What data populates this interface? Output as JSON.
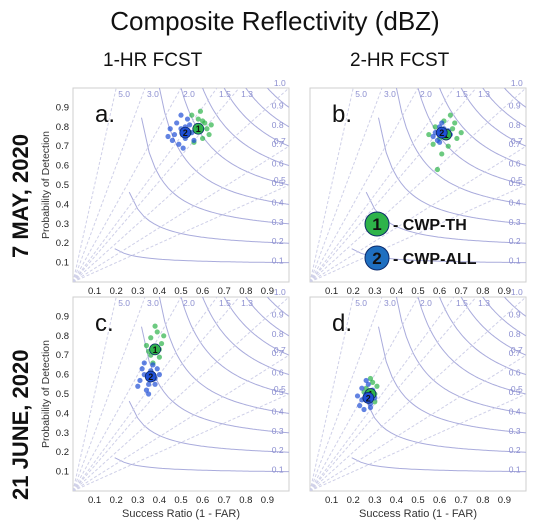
{
  "title": "Composite Reflectivity (dBZ)",
  "columns": [
    "1-HR FCST",
    "2-HR FCST"
  ],
  "rows": [
    "7 MAY, 2020",
    "21 JUNE, 2020"
  ],
  "legend": [
    {
      "number": "1",
      "label": "- CWP-TH",
      "color": "#2eb34a"
    },
    {
      "number": "2",
      "label": "- CWP-ALL",
      "color": "#1f6fc0"
    }
  ],
  "chart_data": [
    {
      "type": "scatter",
      "panel_label": "a.",
      "ylabel": "Probability of Detection",
      "xlabel": "",
      "xlim": [
        0,
        1
      ],
      "ylim": [
        0,
        1
      ],
      "xticks": [
        "0.1",
        "0.2",
        "0.3",
        "0.4",
        "0.5",
        "0.6",
        "0.7",
        "0.8",
        "0.9"
      ],
      "yticks": [
        "0.1",
        "0.2",
        "0.3",
        "0.4",
        "0.5",
        "0.6",
        "0.7",
        "0.8",
        "0.9"
      ],
      "csi_labels": [
        "0.1",
        "0.2",
        "0.3",
        "0.4",
        "0.5",
        "0.6",
        "0.7",
        "0.8",
        "0.9"
      ],
      "bias_labels": [
        "0.5",
        "0.7",
        "1.0",
        "1.3",
        "1.5",
        "2.0",
        "3.0",
        "5.0"
      ],
      "series": [
        {
          "name": "CWP-TH",
          "color": "#2eb34a",
          "mean": [
            0.58,
            0.79
          ],
          "points": [
            [
              0.55,
              0.86
            ],
            [
              0.58,
              0.84
            ],
            [
              0.61,
              0.82
            ],
            [
              0.63,
              0.76
            ],
            [
              0.6,
              0.74
            ],
            [
              0.57,
              0.8
            ],
            [
              0.62,
              0.79
            ],
            [
              0.59,
              0.88
            ],
            [
              0.54,
              0.77
            ],
            [
              0.64,
              0.81
            ],
            [
              0.56,
              0.72
            ],
            [
              0.6,
              0.83
            ]
          ]
        },
        {
          "name": "CWP-ALL",
          "color": "#1f4fd6",
          "mean": [
            0.52,
            0.77
          ],
          "points": [
            [
              0.47,
              0.76
            ],
            [
              0.5,
              0.79
            ],
            [
              0.52,
              0.74
            ],
            [
              0.54,
              0.81
            ],
            [
              0.49,
              0.71
            ],
            [
              0.45,
              0.79
            ],
            [
              0.53,
              0.84
            ],
            [
              0.48,
              0.82
            ],
            [
              0.55,
              0.77
            ],
            [
              0.51,
              0.69
            ],
            [
              0.46,
              0.73
            ],
            [
              0.5,
              0.86
            ],
            [
              0.56,
              0.73
            ],
            [
              0.44,
              0.75
            ],
            [
              0.52,
              0.8
            ]
          ]
        }
      ]
    },
    {
      "type": "scatter",
      "panel_label": "b.",
      "ylabel": "",
      "xlabel": "",
      "xlim": [
        0,
        1
      ],
      "ylim": [
        0,
        1
      ],
      "xticks": [
        "0.1",
        "0.2",
        "0.3",
        "0.4",
        "0.5",
        "0.6",
        "0.7",
        "0.8",
        "0.9"
      ],
      "yticks": [],
      "csi_labels": [
        "0.1",
        "0.2",
        "0.3",
        "0.4",
        "0.5",
        "0.6",
        "0.7",
        "0.8",
        "0.9"
      ],
      "bias_labels": [
        "0.5",
        "0.7",
        "1.0",
        "1.3",
        "1.5",
        "2.0",
        "3.0",
        "5.0"
      ],
      "series": [
        {
          "name": "CWP-TH",
          "color": "#2eb34a",
          "mean": [
            0.63,
            0.76
          ],
          "points": [
            [
              0.58,
              0.8
            ],
            [
              0.62,
              0.83
            ],
            [
              0.66,
              0.79
            ],
            [
              0.68,
              0.74
            ],
            [
              0.64,
              0.7
            ],
            [
              0.6,
              0.74
            ],
            [
              0.7,
              0.77
            ],
            [
              0.57,
              0.71
            ],
            [
              0.65,
              0.86
            ],
            [
              0.61,
              0.66
            ],
            [
              0.55,
              0.76
            ],
            [
              0.67,
              0.82
            ],
            [
              0.59,
              0.58
            ]
          ]
        },
        {
          "name": "CWP-ALL",
          "color": "#1f4fd6",
          "mean": [
            0.61,
            0.77
          ],
          "points": [
            [
              0.58,
              0.77
            ],
            [
              0.6,
              0.8
            ],
            [
              0.63,
              0.75
            ],
            [
              0.62,
              0.79
            ],
            [
              0.59,
              0.73
            ],
            [
              0.64,
              0.78
            ],
            [
              0.61,
              0.82
            ],
            [
              0.57,
              0.75
            ],
            [
              0.65,
              0.76
            ],
            [
              0.6,
              0.72
            ]
          ]
        }
      ]
    },
    {
      "type": "scatter",
      "panel_label": "c.",
      "ylabel": "Probability of Detection",
      "xlabel": "Success Ratio (1 - FAR)",
      "xlim": [
        0,
        1
      ],
      "ylim": [
        0,
        1
      ],
      "xticks": [
        "0.1",
        "0.2",
        "0.3",
        "0.4",
        "0.5",
        "0.6",
        "0.7",
        "0.8",
        "0.9"
      ],
      "yticks": [
        "0.1",
        "0.2",
        "0.3",
        "0.4",
        "0.5",
        "0.6",
        "0.7",
        "0.8",
        "0.9"
      ],
      "csi_labels": [
        "0.1",
        "0.2",
        "0.3",
        "0.4",
        "0.5",
        "0.6",
        "0.7",
        "0.8",
        "0.9"
      ],
      "bias_labels": [
        "0.5",
        "0.7",
        "1.0",
        "1.3",
        "1.5",
        "2.0",
        "3.0",
        "5.0"
      ],
      "series": [
        {
          "name": "CWP-TH",
          "color": "#2eb34a",
          "mean": [
            0.38,
            0.73
          ],
          "points": [
            [
              0.36,
              0.79
            ],
            [
              0.39,
              0.82
            ],
            [
              0.41,
              0.76
            ],
            [
              0.35,
              0.72
            ],
            [
              0.4,
              0.69
            ],
            [
              0.37,
              0.66
            ],
            [
              0.42,
              0.8
            ],
            [
              0.34,
              0.75
            ],
            [
              0.38,
              0.85
            ],
            [
              0.4,
              0.73
            ],
            [
              0.36,
              0.7
            ]
          ]
        },
        {
          "name": "CWP-ALL",
          "color": "#1f4fd6",
          "mean": [
            0.36,
            0.59
          ],
          "points": [
            [
              0.33,
              0.6
            ],
            [
              0.36,
              0.62
            ],
            [
              0.38,
              0.58
            ],
            [
              0.35,
              0.55
            ],
            [
              0.31,
              0.57
            ],
            [
              0.39,
              0.63
            ],
            [
              0.34,
              0.52
            ],
            [
              0.37,
              0.65
            ],
            [
              0.32,
              0.63
            ],
            [
              0.4,
              0.6
            ],
            [
              0.35,
              0.5
            ],
            [
              0.3,
              0.54
            ],
            [
              0.38,
              0.55
            ],
            [
              0.33,
              0.66
            ]
          ]
        }
      ]
    },
    {
      "type": "scatter",
      "panel_label": "d.",
      "ylabel": "",
      "xlabel": "Success Ratio (1 - FAR)",
      "xlim": [
        0,
        1
      ],
      "ylim": [
        0,
        1
      ],
      "xticks": [
        "0.1",
        "0.2",
        "0.3",
        "0.4",
        "0.5",
        "0.6",
        "0.7",
        "0.8",
        "0.9"
      ],
      "yticks": [],
      "csi_labels": [
        "0.1",
        "0.2",
        "0.3",
        "0.4",
        "0.5",
        "0.6",
        "0.7",
        "0.8",
        "0.9"
      ],
      "bias_labels": [
        "0.5",
        "0.7",
        "1.0",
        "1.3",
        "1.5",
        "2.0",
        "3.0",
        "5.0"
      ],
      "series": [
        {
          "name": "CWP-TH",
          "color": "#2eb34a",
          "mean": [
            0.28,
            0.5
          ],
          "points": [
            [
              0.26,
              0.53
            ],
            [
              0.29,
              0.56
            ],
            [
              0.3,
              0.5
            ],
            [
              0.27,
              0.47
            ],
            [
              0.31,
              0.54
            ],
            [
              0.25,
              0.51
            ],
            [
              0.28,
              0.58
            ],
            [
              0.3,
              0.46
            ]
          ]
        },
        {
          "name": "CWP-ALL",
          "color": "#1f4fd6",
          "mean": [
            0.27,
            0.48
          ],
          "points": [
            [
              0.24,
              0.47
            ],
            [
              0.26,
              0.5
            ],
            [
              0.28,
              0.45
            ],
            [
              0.29,
              0.52
            ],
            [
              0.23,
              0.44
            ],
            [
              0.27,
              0.55
            ],
            [
              0.25,
              0.42
            ],
            [
              0.3,
              0.48
            ],
            [
              0.22,
              0.49
            ],
            [
              0.28,
              0.43
            ],
            [
              0.26,
              0.57
            ],
            [
              0.24,
              0.53
            ]
          ]
        }
      ]
    }
  ]
}
